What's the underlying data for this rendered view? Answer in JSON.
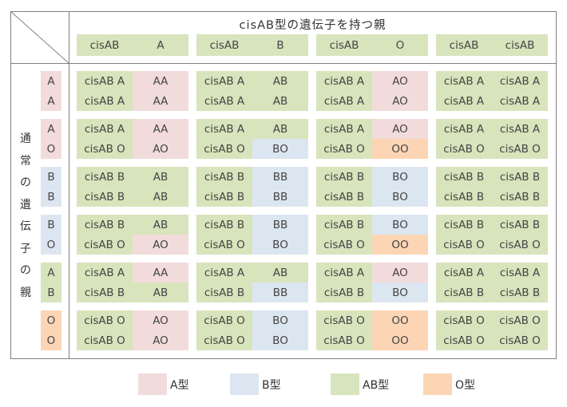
{
  "colors": {
    "A": "#f2dcdb",
    "B": "#dce6f1",
    "AB": "#d8e4bc",
    "O": "#fcd5b4",
    "border": "#808080"
  },
  "header": {
    "title": "cisAB型の遺伝子を持つ親",
    "side_title_chars": [
      "通",
      "常",
      "の",
      "遺",
      "伝",
      "子",
      "の",
      "親"
    ],
    "columns": [
      {
        "g1": "cisAB",
        "g2": "A"
      },
      {
        "g1": "cisAB",
        "g2": "B"
      },
      {
        "g1": "cisAB",
        "g2": "O"
      },
      {
        "g1": "cisAB",
        "g2": "cisAB"
      }
    ]
  },
  "rows": [
    {
      "alleles": [
        {
          "t": "A",
          "c": "A"
        },
        {
          "t": "A",
          "c": "A"
        }
      ],
      "cells": [
        [
          [
            {
              "t": "cisAB A",
              "c": "AB"
            },
            {
              "t": "AA",
              "c": "A"
            }
          ],
          [
            {
              "t": "cisAB A",
              "c": "AB"
            },
            {
              "t": "AA",
              "c": "A"
            }
          ]
        ],
        [
          [
            {
              "t": "cisAB A",
              "c": "AB"
            },
            {
              "t": "AB",
              "c": "AB"
            }
          ],
          [
            {
              "t": "cisAB A",
              "c": "AB"
            },
            {
              "t": "AB",
              "c": "AB"
            }
          ]
        ],
        [
          [
            {
              "t": "cisAB A",
              "c": "AB"
            },
            {
              "t": "AO",
              "c": "A"
            }
          ],
          [
            {
              "t": "cisAB A",
              "c": "AB"
            },
            {
              "t": "AO",
              "c": "A"
            }
          ]
        ],
        [
          [
            {
              "t": "cisAB A",
              "c": "AB"
            },
            {
              "t": "cisAB A",
              "c": "AB"
            }
          ],
          [
            {
              "t": "cisAB A",
              "c": "AB"
            },
            {
              "t": "cisAB A",
              "c": "AB"
            }
          ]
        ]
      ]
    },
    {
      "alleles": [
        {
          "t": "A",
          "c": "A"
        },
        {
          "t": "O",
          "c": "A"
        }
      ],
      "cells": [
        [
          [
            {
              "t": "cisAB A",
              "c": "AB"
            },
            {
              "t": "AA",
              "c": "A"
            }
          ],
          [
            {
              "t": "cisAB O",
              "c": "AB"
            },
            {
              "t": "AO",
              "c": "A"
            }
          ]
        ],
        [
          [
            {
              "t": "cisAB A",
              "c": "AB"
            },
            {
              "t": "AB",
              "c": "AB"
            }
          ],
          [
            {
              "t": "cisAB O",
              "c": "AB"
            },
            {
              "t": "BO",
              "c": "B"
            }
          ]
        ],
        [
          [
            {
              "t": "cisAB A",
              "c": "AB"
            },
            {
              "t": "AO",
              "c": "A"
            }
          ],
          [
            {
              "t": "cisAB O",
              "c": "AB"
            },
            {
              "t": "OO",
              "c": "O"
            }
          ]
        ],
        [
          [
            {
              "t": "cisAB A",
              "c": "AB"
            },
            {
              "t": "cisAB A",
              "c": "AB"
            }
          ],
          [
            {
              "t": "cisAB O",
              "c": "AB"
            },
            {
              "t": "cisAB O",
              "c": "AB"
            }
          ]
        ]
      ]
    },
    {
      "alleles": [
        {
          "t": "B",
          "c": "B"
        },
        {
          "t": "B",
          "c": "B"
        }
      ],
      "cells": [
        [
          [
            {
              "t": "cisAB B",
              "c": "AB"
            },
            {
              "t": "AB",
              "c": "AB"
            }
          ],
          [
            {
              "t": "cisAB B",
              "c": "AB"
            },
            {
              "t": "AB",
              "c": "AB"
            }
          ]
        ],
        [
          [
            {
              "t": "cisAB B",
              "c": "AB"
            },
            {
              "t": "BB",
              "c": "B"
            }
          ],
          [
            {
              "t": "cisAB B",
              "c": "AB"
            },
            {
              "t": "BB",
              "c": "B"
            }
          ]
        ],
        [
          [
            {
              "t": "cisAB B",
              "c": "AB"
            },
            {
              "t": "BO",
              "c": "B"
            }
          ],
          [
            {
              "t": "cisAB B",
              "c": "AB"
            },
            {
              "t": "BO",
              "c": "B"
            }
          ]
        ],
        [
          [
            {
              "t": "cisAB B",
              "c": "AB"
            },
            {
              "t": "cisAB B",
              "c": "AB"
            }
          ],
          [
            {
              "t": "cisAB B",
              "c": "AB"
            },
            {
              "t": "cisAB B",
              "c": "AB"
            }
          ]
        ]
      ]
    },
    {
      "alleles": [
        {
          "t": "B",
          "c": "B"
        },
        {
          "t": "O",
          "c": "B"
        }
      ],
      "cells": [
        [
          [
            {
              "t": "cisAB B",
              "c": "AB"
            },
            {
              "t": "AB",
              "c": "AB"
            }
          ],
          [
            {
              "t": "cisAB O",
              "c": "AB"
            },
            {
              "t": "AO",
              "c": "A"
            }
          ]
        ],
        [
          [
            {
              "t": "cisAB B",
              "c": "AB"
            },
            {
              "t": "BB",
              "c": "B"
            }
          ],
          [
            {
              "t": "cisAB O",
              "c": "AB"
            },
            {
              "t": "BO",
              "c": "B"
            }
          ]
        ],
        [
          [
            {
              "t": "cisAB B",
              "c": "AB"
            },
            {
              "t": "BO",
              "c": "B"
            }
          ],
          [
            {
              "t": "cisAB O",
              "c": "AB"
            },
            {
              "t": "OO",
              "c": "O"
            }
          ]
        ],
        [
          [
            {
              "t": "cisAB B",
              "c": "AB"
            },
            {
              "t": "cisAB B",
              "c": "AB"
            }
          ],
          [
            {
              "t": "cisAB O",
              "c": "AB"
            },
            {
              "t": "cisAB O",
              "c": "AB"
            }
          ]
        ]
      ]
    },
    {
      "alleles": [
        {
          "t": "A",
          "c": "AB"
        },
        {
          "t": "B",
          "c": "AB"
        }
      ],
      "cells": [
        [
          [
            {
              "t": "cisAB A",
              "c": "AB"
            },
            {
              "t": "AA",
              "c": "A"
            }
          ],
          [
            {
              "t": "cisAB B",
              "c": "AB"
            },
            {
              "t": "AB",
              "c": "AB"
            }
          ]
        ],
        [
          [
            {
              "t": "cisAB A",
              "c": "AB"
            },
            {
              "t": "AB",
              "c": "AB"
            }
          ],
          [
            {
              "t": "cisAB B",
              "c": "AB"
            },
            {
              "t": "BB",
              "c": "B"
            }
          ]
        ],
        [
          [
            {
              "t": "cisAB A",
              "c": "AB"
            },
            {
              "t": "AO",
              "c": "A"
            }
          ],
          [
            {
              "t": "cisAB B",
              "c": "AB"
            },
            {
              "t": "BO",
              "c": "B"
            }
          ]
        ],
        [
          [
            {
              "t": "cisAB A",
              "c": "AB"
            },
            {
              "t": "cisAB A",
              "c": "AB"
            }
          ],
          [
            {
              "t": "cisAB B",
              "c": "AB"
            },
            {
              "t": "cisAB B",
              "c": "AB"
            }
          ]
        ]
      ]
    },
    {
      "alleles": [
        {
          "t": "O",
          "c": "O"
        },
        {
          "t": "O",
          "c": "O"
        }
      ],
      "cells": [
        [
          [
            {
              "t": "cisAB O",
              "c": "AB"
            },
            {
              "t": "AO",
              "c": "A"
            }
          ],
          [
            {
              "t": "cisAB O",
              "c": "AB"
            },
            {
              "t": "AO",
              "c": "A"
            }
          ]
        ],
        [
          [
            {
              "t": "cisAB O",
              "c": "AB"
            },
            {
              "t": "BO",
              "c": "B"
            }
          ],
          [
            {
              "t": "cisAB O",
              "c": "AB"
            },
            {
              "t": "BO",
              "c": "B"
            }
          ]
        ],
        [
          [
            {
              "t": "cisAB O",
              "c": "AB"
            },
            {
              "t": "OO",
              "c": "O"
            }
          ],
          [
            {
              "t": "cisAB O",
              "c": "AB"
            },
            {
              "t": "OO",
              "c": "O"
            }
          ]
        ],
        [
          [
            {
              "t": "cisAB O",
              "c": "AB"
            },
            {
              "t": "cisAB O",
              "c": "AB"
            }
          ],
          [
            {
              "t": "cisAB O",
              "c": "AB"
            },
            {
              "t": "cisAB O",
              "c": "AB"
            }
          ]
        ]
      ]
    }
  ],
  "legend": [
    {
      "c": "A",
      "label": "A型"
    },
    {
      "c": "B",
      "label": "B型"
    },
    {
      "c": "AB",
      "label": "AB型"
    },
    {
      "c": "O",
      "label": "O型"
    }
  ]
}
